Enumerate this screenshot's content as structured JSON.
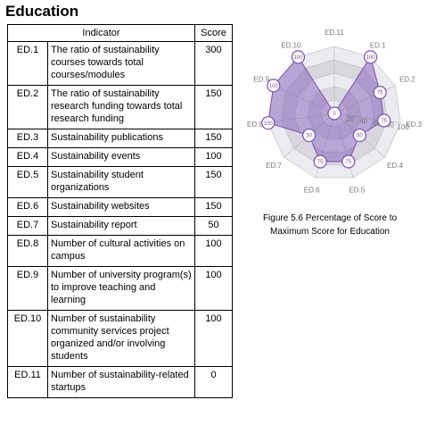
{
  "header": {
    "title": "Education"
  },
  "table": {
    "columns": [
      "Indicator",
      "Score"
    ],
    "rows": [
      [
        "ED.1",
        "The ratio of sustainability courses towards total courses/modules",
        "300"
      ],
      [
        "ED.2",
        "The ratio of sustainability research funding towards total research funding",
        "150"
      ],
      [
        "ED.3",
        "Sustainability publications",
        "150"
      ],
      [
        "ED.4",
        "Sustainability events",
        "100"
      ],
      [
        "ED.5",
        "Sustainability student organizations",
        "150"
      ],
      [
        "ED.6",
        "Sustainability websites",
        "150"
      ],
      [
        "ED.7",
        "Sustainability report",
        "50"
      ],
      [
        "ED.8",
        "Number of cultural activities on campus",
        "100"
      ],
      [
        "ED.9",
        "Number of university program(s) to improve teaching and learning",
        "100"
      ],
      [
        "ED.10",
        "Number of sustainability community services project organized and/or involving students",
        "100"
      ],
      [
        "ED.11",
        "Number of sustainability-related startups",
        "0"
      ]
    ]
  },
  "chart_data": {
    "type": "radar",
    "categories": [
      "ED.1",
      "ED.2",
      "ED.3",
      "ED.4",
      "ED.5",
      "ED.6",
      "ED.7",
      "ED.8",
      "ED.9",
      "ED.10",
      "ED.11"
    ],
    "values": [
      100,
      75,
      75,
      50,
      75,
      75,
      50,
      100,
      100,
      100,
      0
    ],
    "color": "#7b4fb5",
    "rlim": [
      0,
      100
    ],
    "rticks": [
      20,
      40,
      60,
      80,
      100
    ]
  },
  "caption": "Figure 5.6 Percentage of Score to Maximum Score for Education"
}
